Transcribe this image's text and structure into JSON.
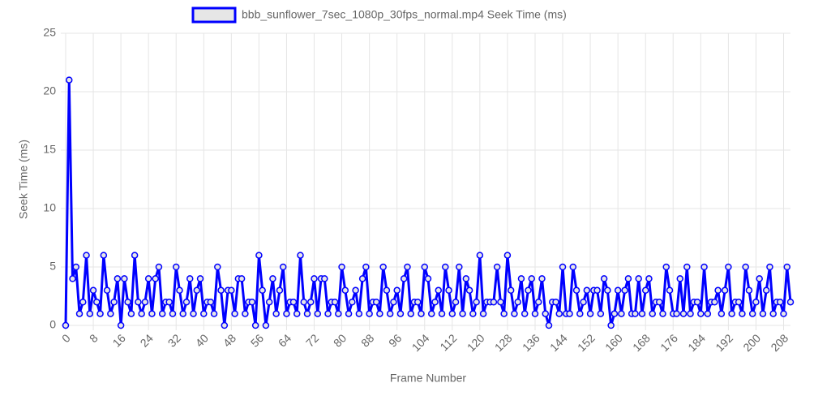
{
  "chart_data": {
    "type": "line",
    "x_label": "Frame Number",
    "y_label": "Seek Time (ms)",
    "x": [
      0,
      1,
      2,
      3,
      4,
      5,
      6,
      7,
      8,
      9,
      10,
      11,
      12,
      13,
      14,
      15,
      16,
      17,
      18,
      19,
      20,
      21,
      22,
      23,
      24,
      25,
      26,
      27,
      28,
      29,
      30,
      31,
      32,
      33,
      34,
      35,
      36,
      37,
      38,
      39,
      40,
      41,
      42,
      43,
      44,
      45,
      46,
      47,
      48,
      49,
      50,
      51,
      52,
      53,
      54,
      55,
      56,
      57,
      58,
      59,
      60,
      61,
      62,
      63,
      64,
      65,
      66,
      67,
      68,
      69,
      70,
      71,
      72,
      73,
      74,
      75,
      76,
      77,
      78,
      79,
      80,
      81,
      82,
      83,
      84,
      85,
      86,
      87,
      88,
      89,
      90,
      91,
      92,
      93,
      94,
      95,
      96,
      97,
      98,
      99,
      100,
      101,
      102,
      103,
      104,
      105,
      106,
      107,
      108,
      109,
      110,
      111,
      112,
      113,
      114,
      115,
      116,
      117,
      118,
      119,
      120,
      121,
      122,
      123,
      124,
      125,
      126,
      127,
      128,
      129,
      130,
      131,
      132,
      133,
      134,
      135,
      136,
      137,
      138,
      139,
      140,
      141,
      142,
      143,
      144,
      145,
      146,
      147,
      148,
      149,
      150,
      151,
      152,
      153,
      154,
      155,
      156,
      157,
      158,
      159,
      160,
      161,
      162,
      163,
      164,
      165,
      166,
      167,
      168,
      169,
      170,
      171,
      172,
      173,
      174,
      175,
      176,
      177,
      178,
      179,
      180,
      181,
      182,
      183,
      184,
      185,
      186,
      187,
      188,
      189,
      190,
      191,
      192,
      193,
      194,
      195,
      196,
      197,
      198,
      199,
      200,
      201,
      202,
      203,
      204,
      205,
      206,
      207,
      208,
      209,
      210
    ],
    "xlim": [
      0,
      210
    ],
    "xticks": [
      0,
      8,
      16,
      24,
      32,
      40,
      48,
      56,
      64,
      72,
      80,
      88,
      96,
      104,
      112,
      120,
      128,
      136,
      144,
      152,
      160,
      168,
      176,
      184,
      192,
      200,
      208
    ],
    "ylim": [
      0,
      25
    ],
    "yticks": [
      0,
      5,
      10,
      15,
      20,
      25
    ],
    "grid": true,
    "legend": "top",
    "series": [
      {
        "name": "bbb_sunflower_7sec_1080p_30fps_normal.mp4 Seek Time (ms)",
        "color": "#0000ff",
        "values": [
          0,
          21,
          4,
          5,
          1,
          2,
          6,
          1,
          3,
          2,
          1,
          6,
          3,
          1,
          2,
          4,
          0,
          4,
          2,
          1,
          6,
          2,
          1,
          2,
          4,
          1,
          4,
          5,
          1,
          2,
          2,
          1,
          5,
          3,
          1,
          2,
          4,
          1,
          3,
          4,
          1,
          2,
          2,
          1,
          5,
          3,
          0,
          3,
          3,
          1,
          4,
          4,
          1,
          2,
          2,
          0,
          6,
          3,
          0,
          2,
          4,
          1,
          3,
          5,
          1,
          2,
          2,
          1,
          6,
          2,
          1,
          2,
          4,
          1,
          4,
          4,
          1,
          2,
          2,
          1,
          5,
          3,
          1,
          2,
          3,
          1,
          4,
          5,
          1,
          2,
          2,
          1,
          5,
          3,
          1,
          2,
          3,
          1,
          4,
          5,
          1,
          2,
          2,
          1,
          5,
          4,
          1,
          2,
          3,
          1,
          5,
          3,
          1,
          2,
          5,
          1,
          4,
          3,
          1,
          2,
          6,
          1,
          2,
          2,
          2,
          5,
          2,
          1,
          6,
          3,
          1,
          2,
          4,
          1,
          3,
          4,
          1,
          2,
          4,
          1,
          0,
          2,
          2,
          1,
          5,
          1,
          1,
          5,
          3,
          1,
          2,
          3,
          1,
          3,
          3,
          1,
          4,
          3,
          0,
          1,
          3,
          1,
          3,
          4,
          1,
          1,
          4,
          1,
          3,
          4,
          1,
          2,
          2,
          1,
          5,
          3,
          1,
          1,
          4,
          1,
          5,
          1,
          2,
          2,
          1,
          5,
          1,
          2,
          2,
          3,
          1,
          3,
          5,
          1,
          2,
          2,
          1,
          5,
          3,
          1,
          2,
          4,
          1,
          3,
          5,
          1,
          2,
          2,
          1,
          5,
          2
        ]
      }
    ]
  }
}
